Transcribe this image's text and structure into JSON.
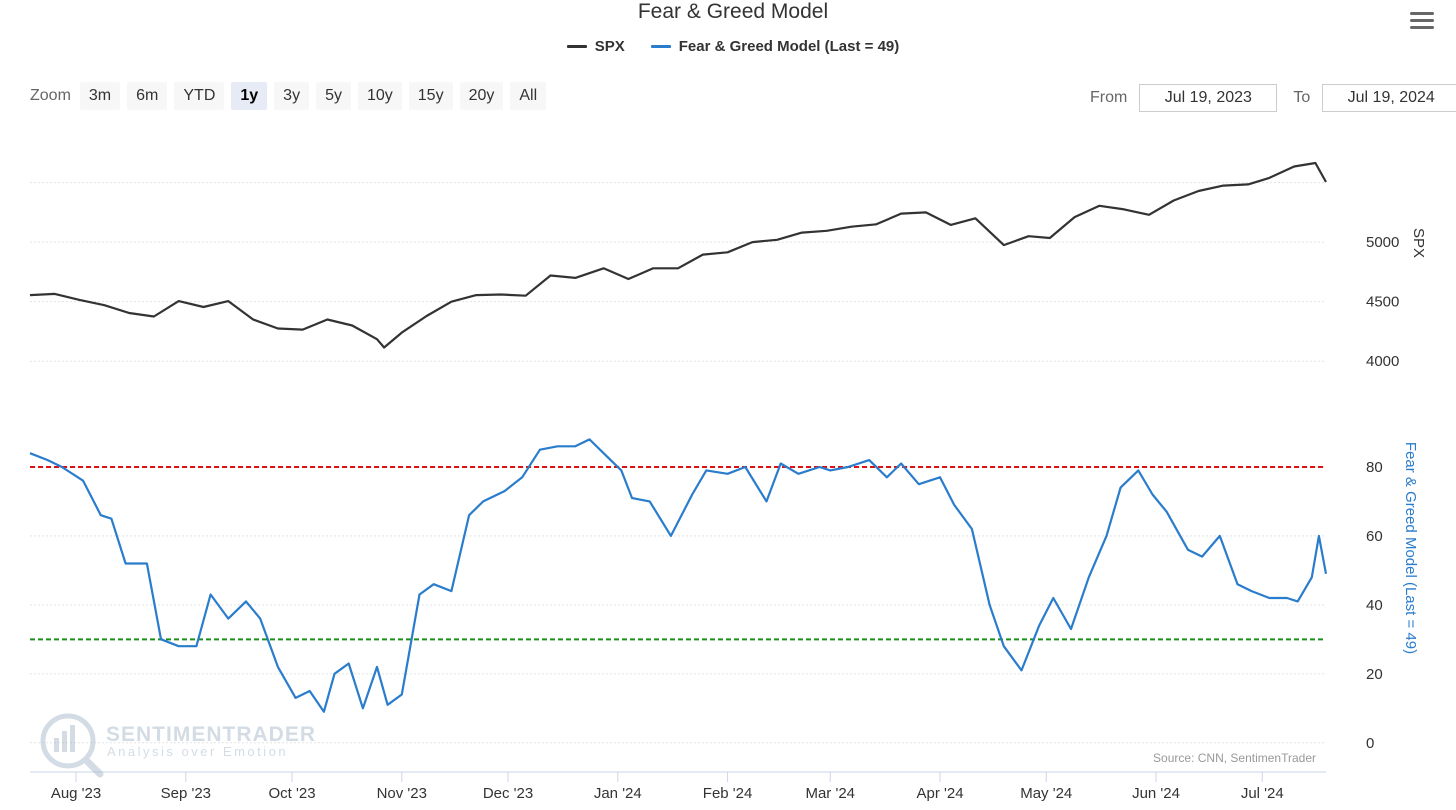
{
  "title": "Fear & Greed Model",
  "menu_icon": "hamburger-menu-icon",
  "legend": [
    {
      "name": "SPX",
      "color": "#333333"
    },
    {
      "name": "Fear & Greed Model (Last = 49)",
      "color": "#2a7ccc"
    }
  ],
  "zoom": {
    "label": "Zoom",
    "options": [
      "3m",
      "6m",
      "YTD",
      "1y",
      "3y",
      "5y",
      "10y",
      "15y",
      "20y",
      "All"
    ],
    "selected": "1y"
  },
  "range": {
    "from_label": "From",
    "from": "Jul 19, 2023",
    "to_label": "To",
    "to": "Jul 19, 2024"
  },
  "credit": "Source: CNN, SentimenTrader",
  "watermark": {
    "brand": "SENTIMENTRADER",
    "tagline": "Analysis over Emotion"
  },
  "chart_data": [
    {
      "type": "line",
      "title": "",
      "ylabel": "SPX",
      "ylim": [
        3800,
        5900
      ],
      "yticks": [
        4000,
        4500,
        5000
      ],
      "xticks": [
        "Aug '23",
        "Sep '23",
        "Oct '23",
        "Nov '23",
        "Dec '23",
        "Jan '24",
        "Feb '24",
        "Mar '24",
        "Apr '24",
        "May '24",
        "Jun '24",
        "Jul '24"
      ],
      "grid": true,
      "series": [
        {
          "name": "SPX",
          "color": "#333333",
          "x": [
            "2023-07-19",
            "2023-07-26",
            "2023-08-02",
            "2023-08-09",
            "2023-08-16",
            "2023-08-23",
            "2023-08-30",
            "2023-09-06",
            "2023-09-13",
            "2023-09-20",
            "2023-09-27",
            "2023-10-04",
            "2023-10-11",
            "2023-10-18",
            "2023-10-25",
            "2023-10-27",
            "2023-11-01",
            "2023-11-08",
            "2023-11-15",
            "2023-11-22",
            "2023-11-29",
            "2023-12-06",
            "2023-12-13",
            "2023-12-20",
            "2023-12-28",
            "2024-01-04",
            "2024-01-11",
            "2024-01-18",
            "2024-01-25",
            "2024-02-01",
            "2024-02-08",
            "2024-02-15",
            "2024-02-22",
            "2024-02-29",
            "2024-03-07",
            "2024-03-14",
            "2024-03-21",
            "2024-03-28",
            "2024-04-04",
            "2024-04-11",
            "2024-04-19",
            "2024-04-26",
            "2024-05-02",
            "2024-05-09",
            "2024-05-16",
            "2024-05-23",
            "2024-05-30",
            "2024-06-06",
            "2024-06-13",
            "2024-06-20",
            "2024-06-27",
            "2024-07-03",
            "2024-07-10",
            "2024-07-16",
            "2024-07-19"
          ],
          "y": [
            4555,
            4565,
            4515,
            4470,
            4405,
            4375,
            4505,
            4455,
            4505,
            4350,
            4275,
            4265,
            4350,
            4300,
            4185,
            4115,
            4240,
            4380,
            4500,
            4555,
            4560,
            4550,
            4720,
            4700,
            4780,
            4690,
            4780,
            4780,
            4895,
            4915,
            5000,
            5020,
            5080,
            5095,
            5130,
            5150,
            5240,
            5250,
            5145,
            5200,
            4975,
            5050,
            5035,
            5210,
            5305,
            5275,
            5230,
            5350,
            5430,
            5475,
            5485,
            5540,
            5635,
            5665,
            5505
          ]
        }
      ]
    },
    {
      "type": "line",
      "title": "",
      "ylabel": "Fear & Greed Model (Last = 49)",
      "ylim": [
        -5,
        100
      ],
      "yticks": [
        0,
        20,
        40,
        60,
        80
      ],
      "reference_lines": [
        {
          "value": 80,
          "color": "#dd1111",
          "style": "dashed"
        },
        {
          "value": 30,
          "color": "#1a8f1a",
          "style": "dashed"
        }
      ],
      "series": [
        {
          "name": "Fear & Greed Model (Last = 49)",
          "color": "#2a7ccc",
          "x": [
            "2023-07-19",
            "2023-07-24",
            "2023-07-28",
            "2023-08-03",
            "2023-08-08",
            "2023-08-11",
            "2023-08-15",
            "2023-08-21",
            "2023-08-25",
            "2023-08-30",
            "2023-09-04",
            "2023-09-08",
            "2023-09-13",
            "2023-09-18",
            "2023-09-22",
            "2023-09-27",
            "2023-10-02",
            "2023-10-06",
            "2023-10-10",
            "2023-10-13",
            "2023-10-17",
            "2023-10-21",
            "2023-10-25",
            "2023-10-28",
            "2023-11-01",
            "2023-11-06",
            "2023-11-10",
            "2023-11-15",
            "2023-11-20",
            "2023-11-24",
            "2023-11-30",
            "2023-12-05",
            "2023-12-10",
            "2023-12-15",
            "2023-12-20",
            "2023-12-24",
            "2023-12-28",
            "2024-01-02",
            "2024-01-05",
            "2024-01-10",
            "2024-01-16",
            "2024-01-22",
            "2024-01-26",
            "2024-02-01",
            "2024-02-06",
            "2024-02-12",
            "2024-02-16",
            "2024-02-21",
            "2024-02-27",
            "2024-03-01",
            "2024-03-06",
            "2024-03-12",
            "2024-03-17",
            "2024-03-21",
            "2024-03-26",
            "2024-04-01",
            "2024-04-05",
            "2024-04-10",
            "2024-04-15",
            "2024-04-19",
            "2024-04-24",
            "2024-04-29",
            "2024-05-03",
            "2024-05-08",
            "2024-05-13",
            "2024-05-18",
            "2024-05-22",
            "2024-05-27",
            "2024-05-31",
            "2024-06-04",
            "2024-06-10",
            "2024-06-14",
            "2024-06-19",
            "2024-06-24",
            "2024-06-28",
            "2024-07-03",
            "2024-07-08",
            "2024-07-11",
            "2024-07-15",
            "2024-07-17",
            "2024-07-19"
          ],
          "y": [
            84,
            82,
            80,
            76,
            66,
            65,
            52,
            52,
            30,
            28,
            28,
            43,
            36,
            41,
            36,
            22,
            13,
            15,
            9,
            20,
            23,
            10,
            22,
            11,
            14,
            43,
            46,
            44,
            66,
            70,
            73,
            77,
            85,
            86,
            86,
            88,
            84,
            79,
            71,
            70,
            60,
            72,
            79,
            78,
            80,
            70,
            81,
            78,
            80,
            79,
            80,
            82,
            77,
            81,
            75,
            77,
            69,
            62,
            40,
            28,
            21,
            34,
            42,
            33,
            48,
            60,
            74,
            79,
            72,
            67,
            56,
            54,
            60,
            46,
            44,
            42,
            42,
            41,
            48,
            60,
            49
          ]
        }
      ]
    }
  ]
}
